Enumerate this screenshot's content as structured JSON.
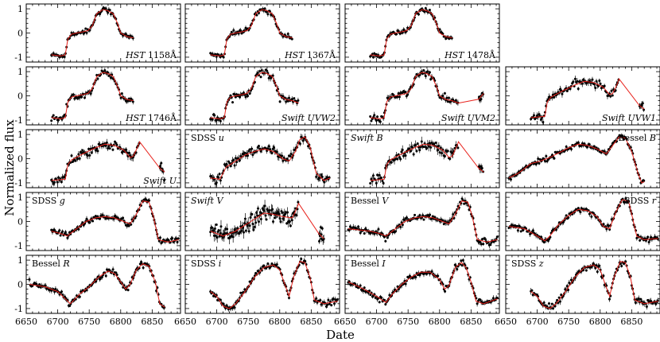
{
  "chart_data": {
    "type": "scatter",
    "ylabel": "Normalized flux",
    "xlabel": "Date",
    "xlim": [
      6650,
      6895
    ],
    "ylim": [
      -1.2,
      1.2
    ],
    "xticks": [
      "6650",
      "6700",
      "6750",
      "6800",
      "6850"
    ],
    "yticks": [
      "-1",
      "0",
      "1"
    ],
    "colors": {
      "points": "#000000",
      "model": "#e8231d",
      "frame": "#000000"
    },
    "panels": [
      {
        "id": "hst1158",
        "prefix": "HST",
        "suffix": "1158Å",
        "row": 0,
        "col": 0,
        "label_pos": "bottom-right",
        "start": 6690,
        "end": 6820,
        "gap": null,
        "p": "A",
        "noise": 0.05
      },
      {
        "id": "hst1367",
        "prefix": "HST",
        "suffix": "1367Å",
        "row": 0,
        "col": 1,
        "label_pos": "bottom-right",
        "start": 6690,
        "end": 6820,
        "gap": null,
        "p": "A",
        "noise": 0.05
      },
      {
        "id": "hst1478",
        "prefix": "HST",
        "suffix": "1478Å",
        "row": 0,
        "col": 2,
        "label_pos": "bottom-right",
        "start": 6690,
        "end": 6820,
        "gap": null,
        "p": "A",
        "noise": 0.05
      },
      {
        "id": "hst1746",
        "prefix": "HST",
        "suffix": "1746Å",
        "row": 1,
        "col": 0,
        "label_pos": "bottom-right",
        "start": 6690,
        "end": 6820,
        "gap": null,
        "p": "A",
        "noise": 0.06
      },
      {
        "id": "uvw2",
        "prefix": "Swift",
        "suffix": "UVW2",
        "row": 1,
        "col": 1,
        "label_pos": "bottom-right",
        "start": 6690,
        "end": 6830,
        "gap": null,
        "p": "A",
        "noise": 0.07
      },
      {
        "id": "uvm2",
        "prefix": "Swift",
        "suffix": "UVM2",
        "row": 1,
        "col": 2,
        "label_pos": "bottom-right",
        "start": 6690,
        "end": 6870,
        "gap": [
          6830,
          6862
        ],
        "p": "A",
        "noise": 0.07
      },
      {
        "id": "uvw1",
        "prefix": "Swift",
        "suffix": "UVW1",
        "row": 1,
        "col": 3,
        "label_pos": "bottom-right",
        "start": 6690,
        "end": 6870,
        "gap": [
          6830,
          6862
        ],
        "p": "B",
        "noise": 0.08
      },
      {
        "id": "swiftu",
        "prefix": "Swift",
        "suffix": "U",
        "row": 2,
        "col": 0,
        "label_pos": "bottom-right",
        "start": 6690,
        "end": 6870,
        "gap": [
          6830,
          6862
        ],
        "p": "B",
        "noise": 0.09
      },
      {
        "id": "sdssu",
        "prefix": "SDSS",
        "suffix": "u",
        "row": 2,
        "col": 1,
        "label_pos": "top-left",
        "start": 6690,
        "end": 6880,
        "gap": null,
        "p": "C",
        "noise": 0.09
      },
      {
        "id": "swiftb",
        "prefix": "Swift",
        "suffix": "B",
        "row": 2,
        "col": 2,
        "label_pos": "top-left",
        "start": 6690,
        "end": 6870,
        "gap": [
          6830,
          6862
        ],
        "p": "B",
        "noise": 0.12
      },
      {
        "id": "besselb",
        "prefix": "Bessel",
        "suffix": "B",
        "row": 2,
        "col": 3,
        "label_pos": "top-right",
        "start": 6655,
        "end": 6870,
        "gap": null,
        "p": "D",
        "noise": 0.05
      },
      {
        "id": "sdssg",
        "prefix": "SDSS",
        "suffix": "g",
        "row": 3,
        "col": 0,
        "label_pos": "top-left",
        "start": 6690,
        "end": 6892,
        "gap": null,
        "p": "E",
        "noise": 0.06
      },
      {
        "id": "swiftv",
        "prefix": "Swift",
        "suffix": "V",
        "row": 3,
        "col": 1,
        "label_pos": "top-left",
        "start": 6690,
        "end": 6870,
        "gap": [
          6830,
          6862
        ],
        "p": "F",
        "noise": 0.16
      },
      {
        "id": "besselv",
        "prefix": "Bessel",
        "suffix": "V",
        "row": 3,
        "col": 2,
        "label_pos": "top-left",
        "start": 6655,
        "end": 6892,
        "gap": null,
        "p": "E",
        "noise": 0.07
      },
      {
        "id": "sdssr",
        "prefix": "SDSS",
        "suffix": "r",
        "row": 3,
        "col": 3,
        "label_pos": "top-right",
        "start": 6655,
        "end": 6892,
        "gap": null,
        "p": "G",
        "noise": 0.06
      },
      {
        "id": "besselr",
        "prefix": "Bessel",
        "suffix": "R",
        "row": 4,
        "col": 0,
        "label_pos": "top-left",
        "start": 6655,
        "end": 6870,
        "gap": null,
        "p": "H",
        "noise": 0.06
      },
      {
        "id": "sdssi",
        "prefix": "SDSS",
        "suffix": "i",
        "row": 4,
        "col": 1,
        "label_pos": "top-left",
        "start": 6690,
        "end": 6892,
        "gap": null,
        "p": "I",
        "noise": 0.06
      },
      {
        "id": "besseli",
        "prefix": "Bessel",
        "suffix": "I",
        "row": 4,
        "col": 2,
        "label_pos": "top-left",
        "start": 6655,
        "end": 6892,
        "gap": null,
        "p": "J",
        "noise": 0.06
      },
      {
        "id": "sdssz",
        "prefix": "SDSS",
        "suffix": "z",
        "row": 4,
        "col": 3,
        "label_pos": "top-left",
        "start": 6690,
        "end": 6892,
        "gap": null,
        "p": "I",
        "noise": 0.07
      }
    ],
    "profiles": {
      "A": [
        [
          6690,
          -0.9
        ],
        [
          6705,
          -0.95
        ],
        [
          6712,
          -0.9
        ],
        [
          6716,
          -0.25
        ],
        [
          6722,
          -0.05
        ],
        [
          6730,
          0.0
        ],
        [
          6740,
          0.05
        ],
        [
          6748,
          0.1
        ],
        [
          6755,
          0.3
        ],
        [
          6762,
          0.8
        ],
        [
          6772,
          0.97
        ],
        [
          6780,
          0.92
        ],
        [
          6788,
          0.8
        ],
        [
          6795,
          0.4
        ],
        [
          6800,
          0.0
        ],
        [
          6810,
          -0.15
        ],
        [
          6820,
          -0.2
        ],
        [
          6830,
          -0.3
        ],
        [
          6840,
          -0.35
        ],
        [
          6850,
          -0.25
        ],
        [
          6860,
          -0.2
        ],
        [
          6870,
          0.1
        ]
      ],
      "B": [
        [
          6690,
          -0.9
        ],
        [
          6712,
          -0.85
        ],
        [
          6716,
          -0.25
        ],
        [
          6722,
          -0.05
        ],
        [
          6740,
          0.2
        ],
        [
          6760,
          0.45
        ],
        [
          6775,
          0.6
        ],
        [
          6790,
          0.55
        ],
        [
          6805,
          0.35
        ],
        [
          6815,
          0.05
        ],
        [
          6820,
          0.1
        ],
        [
          6828,
          0.55
        ],
        [
          6832,
          0.85
        ],
        [
          6860,
          -0.35
        ],
        [
          6870,
          -0.55
        ]
      ],
      "C": [
        [
          6690,
          -0.8
        ],
        [
          6705,
          -0.85
        ],
        [
          6715,
          -0.35
        ],
        [
          6730,
          -0.1
        ],
        [
          6745,
          0.15
        ],
        [
          6760,
          0.3
        ],
        [
          6775,
          0.4
        ],
        [
          6790,
          0.3
        ],
        [
          6805,
          0.0
        ],
        [
          6815,
          -0.1
        ],
        [
          6825,
          0.3
        ],
        [
          6832,
          0.8
        ],
        [
          6840,
          0.9
        ],
        [
          6848,
          0.5
        ],
        [
          6858,
          -0.6
        ],
        [
          6870,
          -0.9
        ],
        [
          6880,
          -0.8
        ]
      ],
      "D": [
        [
          6655,
          -0.8
        ],
        [
          6670,
          -0.6
        ],
        [
          6690,
          -0.2
        ],
        [
          6705,
          -0.1
        ],
        [
          6720,
          0.05
        ],
        [
          6735,
          0.25
        ],
        [
          6750,
          0.45
        ],
        [
          6765,
          0.6
        ],
        [
          6780,
          0.55
        ],
        [
          6795,
          0.4
        ],
        [
          6810,
          0.2
        ],
        [
          6820,
          0.55
        ],
        [
          6830,
          0.9
        ],
        [
          6840,
          0.85
        ],
        [
          6850,
          0.3
        ],
        [
          6860,
          -0.6
        ],
        [
          6866,
          -1.0
        ],
        [
          6870,
          -0.95
        ]
      ],
      "E": [
        [
          6655,
          -0.3
        ],
        [
          6690,
          -0.4
        ],
        [
          6705,
          -0.5
        ],
        [
          6715,
          -0.6
        ],
        [
          6730,
          -0.3
        ],
        [
          6745,
          0.0
        ],
        [
          6760,
          0.15
        ],
        [
          6775,
          0.2
        ],
        [
          6790,
          0.15
        ],
        [
          6800,
          0.05
        ],
        [
          6815,
          -0.1
        ],
        [
          6825,
          0.3
        ],
        [
          6835,
          0.85
        ],
        [
          6845,
          0.8
        ],
        [
          6852,
          0.2
        ],
        [
          6860,
          -0.75
        ],
        [
          6875,
          -0.85
        ],
        [
          6892,
          -0.75
        ]
      ],
      "F": [
        [
          6690,
          -0.4
        ],
        [
          6700,
          -0.5
        ],
        [
          6710,
          -0.6
        ],
        [
          6730,
          -0.4
        ],
        [
          6760,
          0.1
        ],
        [
          6775,
          0.35
        ],
        [
          6790,
          0.3
        ],
        [
          6805,
          0.2
        ],
        [
          6820,
          0.15
        ],
        [
          6828,
          0.6
        ],
        [
          6832,
          0.9
        ],
        [
          6862,
          -0.5
        ],
        [
          6870,
          -0.7
        ]
      ],
      "G": [
        [
          6655,
          -0.2
        ],
        [
          6680,
          -0.3
        ],
        [
          6700,
          -0.6
        ],
        [
          6712,
          -0.8
        ],
        [
          6720,
          -0.6
        ],
        [
          6735,
          -0.1
        ],
        [
          6750,
          0.25
        ],
        [
          6765,
          0.5
        ],
        [
          6780,
          0.45
        ],
        [
          6795,
          0.2
        ],
        [
          6805,
          -0.2
        ],
        [
          6815,
          -0.3
        ],
        [
          6825,
          0.4
        ],
        [
          6835,
          0.9
        ],
        [
          6845,
          0.85
        ],
        [
          6850,
          0.3
        ],
        [
          6858,
          -0.6
        ],
        [
          6870,
          -0.75
        ],
        [
          6892,
          -0.7
        ]
      ],
      "H": [
        [
          6655,
          0.0
        ],
        [
          6680,
          -0.1
        ],
        [
          6700,
          -0.3
        ],
        [
          6720,
          -0.8
        ],
        [
          6735,
          -0.4
        ],
        [
          6750,
          -0.1
        ],
        [
          6765,
          0.3
        ],
        [
          6780,
          0.55
        ],
        [
          6790,
          0.45
        ],
        [
          6800,
          0.1
        ],
        [
          6808,
          -0.2
        ],
        [
          6815,
          0.0
        ],
        [
          6825,
          0.6
        ],
        [
          6835,
          0.85
        ],
        [
          6845,
          0.75
        ],
        [
          6855,
          0.1
        ],
        [
          6862,
          -0.8
        ],
        [
          6870,
          -0.95
        ]
      ],
      "I": [
        [
          6690,
          -0.3
        ],
        [
          6700,
          -0.5
        ],
        [
          6710,
          -0.9
        ],
        [
          6720,
          -1.0
        ],
        [
          6730,
          -0.8
        ],
        [
          6745,
          -0.3
        ],
        [
          6760,
          0.3
        ],
        [
          6775,
          0.7
        ],
        [
          6790,
          0.8
        ],
        [
          6800,
          0.6
        ],
        [
          6808,
          0.0
        ],
        [
          6815,
          -0.5
        ],
        [
          6822,
          0.3
        ],
        [
          6832,
          0.95
        ],
        [
          6840,
          0.9
        ],
        [
          6848,
          0.3
        ],
        [
          6855,
          -0.65
        ],
        [
          6870,
          -0.8
        ],
        [
          6892,
          -0.7
        ]
      ],
      "J": [
        [
          6655,
          0.1
        ],
        [
          6680,
          -0.2
        ],
        [
          6700,
          -0.5
        ],
        [
          6715,
          -0.75
        ],
        [
          6725,
          -0.4
        ],
        [
          6740,
          0.0
        ],
        [
          6755,
          0.3
        ],
        [
          6770,
          0.5
        ],
        [
          6785,
          0.5
        ],
        [
          6800,
          0.2
        ],
        [
          6808,
          -0.2
        ],
        [
          6815,
          -0.05
        ],
        [
          6825,
          0.7
        ],
        [
          6835,
          0.9
        ],
        [
          6842,
          0.7
        ],
        [
          6850,
          0.1
        ],
        [
          6858,
          -0.7
        ],
        [
          6870,
          -0.8
        ],
        [
          6892,
          -0.6
        ]
      ]
    }
  }
}
